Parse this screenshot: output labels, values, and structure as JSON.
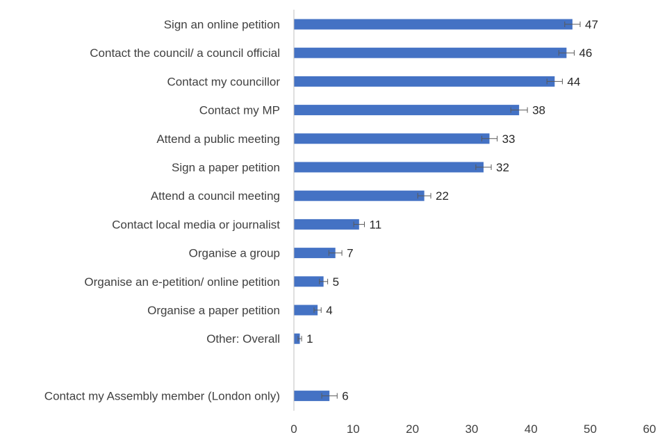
{
  "colors": {
    "bar": "#4472C4",
    "axis": "#BFBFBF",
    "errorbar": "#595959",
    "text": "#404040"
  },
  "chart_data": {
    "type": "bar",
    "orientation": "horizontal",
    "title": "",
    "xlabel": "",
    "ylabel": "",
    "xlim": [
      0,
      60
    ],
    "x_ticks": [
      "0",
      "10",
      "20",
      "30",
      "40",
      "50",
      "60"
    ],
    "grid": false,
    "legend": "none",
    "categories": [
      "Sign an online petition",
      "Contact the council/ a council official",
      "Contact my councillor",
      "Contact my MP",
      "Attend a public meeting",
      "Sign a paper petition",
      "Attend a council meeting",
      "Contact local media or journalist",
      "Organise a group",
      "Organise an e-petition/ online petition",
      "Organise a paper petition",
      "Other: Overall",
      "",
      "Contact my Assembly member (London only)"
    ],
    "values": [
      47,
      46,
      44,
      38,
      33,
      32,
      22,
      11,
      7,
      5,
      4,
      1,
      null,
      6
    ],
    "value_labels": [
      "47",
      "46",
      "44",
      "38",
      "33",
      "32",
      "22",
      "11",
      "7",
      "5",
      "4",
      "1",
      "",
      "6"
    ],
    "error_bars": [
      1.3,
      1.3,
      1.3,
      1.4,
      1.3,
      1.3,
      1.1,
      0.9,
      1.1,
      0.7,
      0.6,
      0.3,
      null,
      1.3
    ]
  }
}
